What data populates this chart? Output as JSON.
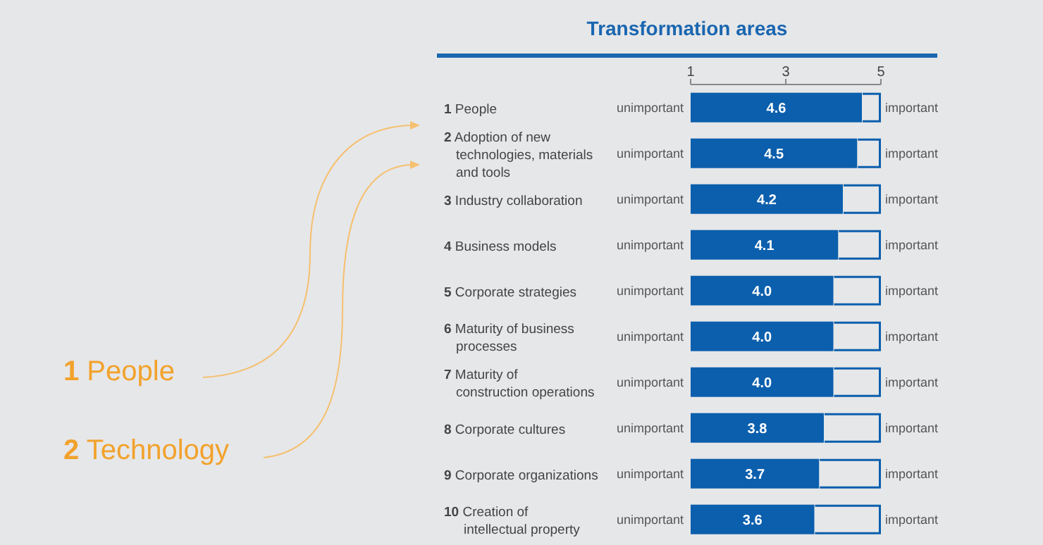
{
  "chart_data": {
    "type": "bar",
    "orientation": "horizontal",
    "title": "Transformation areas",
    "categories": [
      "1 People",
      "2 Adoption of new technologies, materials and tools",
      "3 Industry collaboration",
      "4 Business models",
      "5 Corporate strategies",
      "6 Maturity of business processes",
      "7 Maturity of construction operations",
      "8 Corporate cultures",
      "9 Corporate organizations",
      "10 Creation of intellectual property"
    ],
    "series": [
      {
        "color": "#0b5fad",
        "axis": "x2",
        "values": [
          4.6,
          4.5,
          4.2,
          4.1,
          4.0,
          4.0,
          4.0,
          3.8,
          3.7,
          3.6
        ]
      }
    ],
    "x2lim": [
      1,
      5
    ],
    "x2ticks": [
      1,
      3,
      5
    ],
    "value_labels": [
      "4.6",
      "4.5",
      "4.2",
      "4.1",
      "4.0",
      "4.0",
      "4.0",
      "3.8",
      "3.7",
      "3.6"
    ],
    "grid": false,
    "annotations": [
      "unimportant",
      "important",
      "1 People",
      "2 Technology"
    ]
  }
}
